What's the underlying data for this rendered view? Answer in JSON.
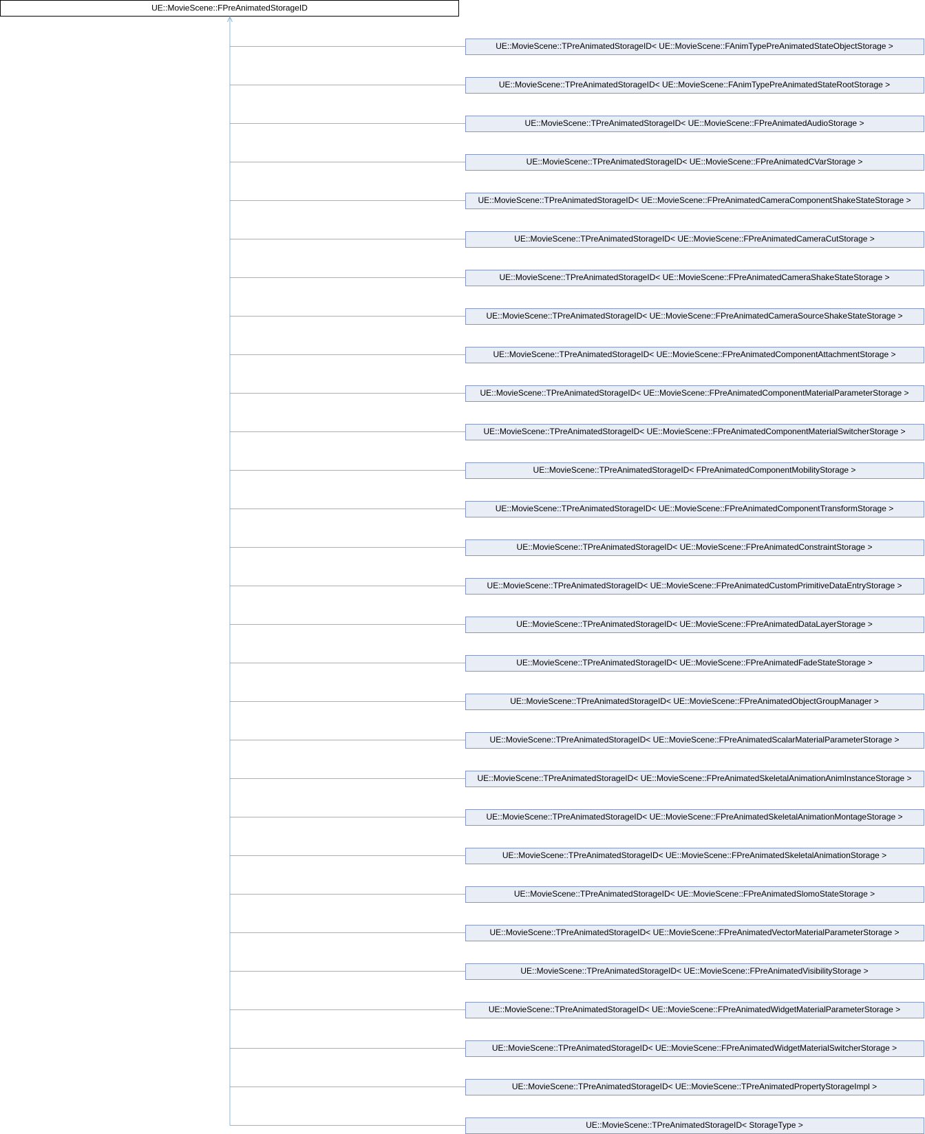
{
  "root": {
    "label": "UE::MovieScene::FPreAnimatedStorageID"
  },
  "children": [
    {
      "label": "UE::MovieScene::TPreAnimatedStorageID< UE::MovieScene::FAnimTypePreAnimatedStateObjectStorage >"
    },
    {
      "label": "UE::MovieScene::TPreAnimatedStorageID< UE::MovieScene::FAnimTypePreAnimatedStateRootStorage >"
    },
    {
      "label": "UE::MovieScene::TPreAnimatedStorageID< UE::MovieScene::FPreAnimatedAudioStorage >"
    },
    {
      "label": "UE::MovieScene::TPreAnimatedStorageID< UE::MovieScene::FPreAnimatedCVarStorage >"
    },
    {
      "label": "UE::MovieScene::TPreAnimatedStorageID< UE::MovieScene::FPreAnimatedCameraComponentShakeStateStorage >"
    },
    {
      "label": "UE::MovieScene::TPreAnimatedStorageID< UE::MovieScene::FPreAnimatedCameraCutStorage >"
    },
    {
      "label": "UE::MovieScene::TPreAnimatedStorageID< UE::MovieScene::FPreAnimatedCameraShakeStateStorage >"
    },
    {
      "label": "UE::MovieScene::TPreAnimatedStorageID< UE::MovieScene::FPreAnimatedCameraSourceShakeStateStorage >"
    },
    {
      "label": "UE::MovieScene::TPreAnimatedStorageID< UE::MovieScene::FPreAnimatedComponentAttachmentStorage >"
    },
    {
      "label": "UE::MovieScene::TPreAnimatedStorageID< UE::MovieScene::FPreAnimatedComponentMaterialParameterStorage >"
    },
    {
      "label": "UE::MovieScene::TPreAnimatedStorageID< UE::MovieScene::FPreAnimatedComponentMaterialSwitcherStorage >"
    },
    {
      "label": "UE::MovieScene::TPreAnimatedStorageID< FPreAnimatedComponentMobilityStorage >"
    },
    {
      "label": "UE::MovieScene::TPreAnimatedStorageID< UE::MovieScene::FPreAnimatedComponentTransformStorage >"
    },
    {
      "label": "UE::MovieScene::TPreAnimatedStorageID< UE::MovieScene::FPreAnimatedConstraintStorage >"
    },
    {
      "label": "UE::MovieScene::TPreAnimatedStorageID< UE::MovieScene::FPreAnimatedCustomPrimitiveDataEntryStorage >"
    },
    {
      "label": "UE::MovieScene::TPreAnimatedStorageID< UE::MovieScene::FPreAnimatedDataLayerStorage >"
    },
    {
      "label": "UE::MovieScene::TPreAnimatedStorageID< UE::MovieScene::FPreAnimatedFadeStateStorage >"
    },
    {
      "label": "UE::MovieScene::TPreAnimatedStorageID< UE::MovieScene::FPreAnimatedObjectGroupManager >"
    },
    {
      "label": "UE::MovieScene::TPreAnimatedStorageID< UE::MovieScene::FPreAnimatedScalarMaterialParameterStorage >"
    },
    {
      "label": "UE::MovieScene::TPreAnimatedStorageID< UE::MovieScene::FPreAnimatedSkeletalAnimationAnimInstanceStorage >"
    },
    {
      "label": "UE::MovieScene::TPreAnimatedStorageID< UE::MovieScene::FPreAnimatedSkeletalAnimationMontageStorage >"
    },
    {
      "label": "UE::MovieScene::TPreAnimatedStorageID< UE::MovieScene::FPreAnimatedSkeletalAnimationStorage >"
    },
    {
      "label": "UE::MovieScene::TPreAnimatedStorageID< UE::MovieScene::FPreAnimatedSlomoStateStorage >"
    },
    {
      "label": "UE::MovieScene::TPreAnimatedStorageID< UE::MovieScene::FPreAnimatedVectorMaterialParameterStorage >"
    },
    {
      "label": "UE::MovieScene::TPreAnimatedStorageID< UE::MovieScene::FPreAnimatedVisibilityStorage >"
    },
    {
      "label": "UE::MovieScene::TPreAnimatedStorageID< UE::MovieScene::FPreAnimatedWidgetMaterialParameterStorage >"
    },
    {
      "label": "UE::MovieScene::TPreAnimatedStorageID< UE::MovieScene::FPreAnimatedWidgetMaterialSwitcherStorage >"
    },
    {
      "label": "UE::MovieScene::TPreAnimatedStorageID< UE::MovieScene::TPreAnimatedPropertyStorageImpl >"
    },
    {
      "label": "UE::MovieScene::TPreAnimatedStorageID< StorageType >"
    }
  ]
}
